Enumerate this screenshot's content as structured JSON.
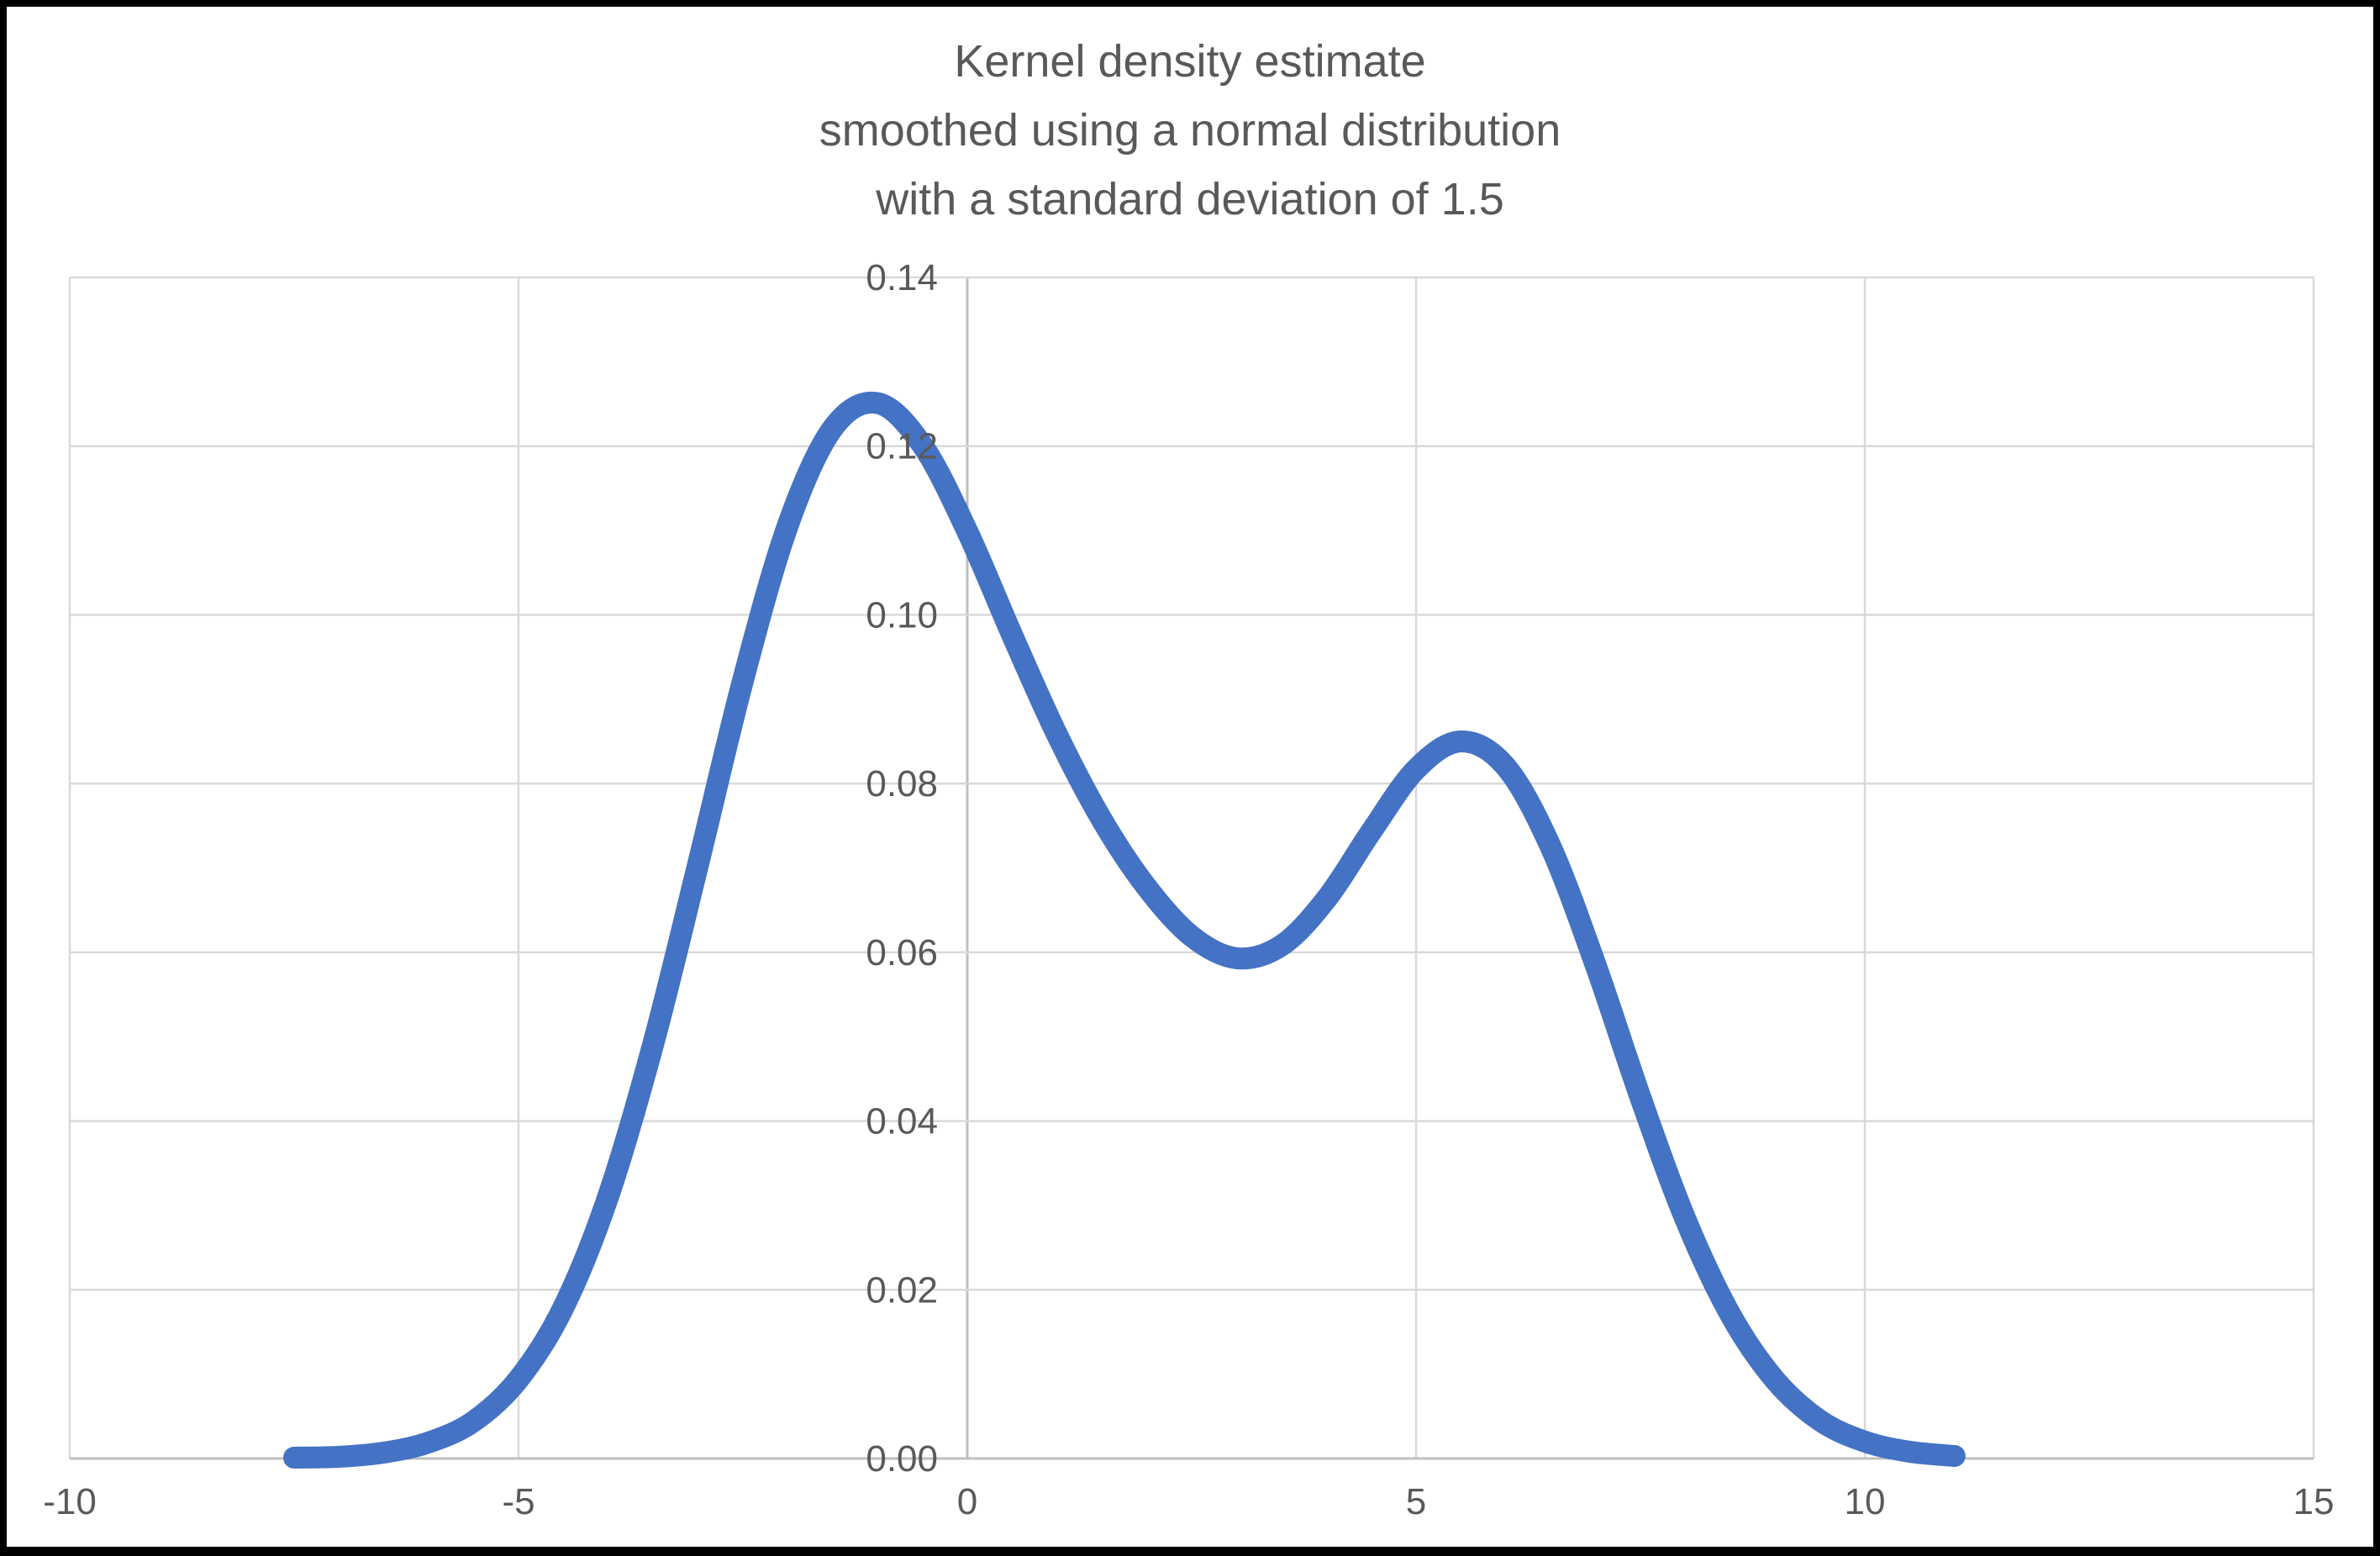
{
  "title": {
    "lines": [
      "Kernel density estimate",
      "smoothed using a normal distribution",
      "with a standard deviation of 1.5"
    ],
    "color": "#595959"
  },
  "chart_data": {
    "type": "line",
    "title": "Kernel density estimate smoothed using a normal distribution with a standard deviation of 1.5",
    "xlabel": "",
    "ylabel": "",
    "xlim": [
      -10,
      15
    ],
    "ylim": [
      0,
      0.14
    ],
    "grid": true,
    "legend": "none",
    "x_ticks": {
      "values": [
        -10,
        -5,
        0,
        5,
        10,
        15
      ],
      "labels": [
        "-10",
        "-5",
        "0",
        "5",
        "10",
        "15"
      ]
    },
    "y_ticks": {
      "values": [
        0,
        0.02,
        0.04,
        0.06,
        0.08,
        0.1,
        0.12,
        0.14
      ],
      "labels": [
        "0.00",
        "0.02",
        "0.04",
        "0.06",
        "0.08",
        "0.10",
        "0.12",
        "0.14"
      ]
    },
    "colors": {
      "line": "#4472C4",
      "gridline": "#D9D9D9",
      "axis_line": "#BFBFBF",
      "tick_label": "#595959",
      "background": "#FFFFFF",
      "frame": "#000000"
    },
    "series": [
      {
        "name": "kernel density estimate",
        "color": "#4472C4",
        "points": [
          [
            -7.5,
            0.0001
          ],
          [
            -7.0,
            0.0002
          ],
          [
            -6.5,
            0.0007
          ],
          [
            -6.0,
            0.0019
          ],
          [
            -5.5,
            0.0044
          ],
          [
            -5.0,
            0.0094
          ],
          [
            -4.5,
            0.0179
          ],
          [
            -4.0,
            0.0311
          ],
          [
            -3.5,
            0.0491
          ],
          [
            -3.0,
            0.0704
          ],
          [
            -2.5,
            0.0922
          ],
          [
            -2.0,
            0.1106
          ],
          [
            -1.5,
            0.1221
          ],
          [
            -1.0,
            0.1251
          ],
          [
            -0.5,
            0.1201
          ],
          [
            0.0,
            0.1099
          ],
          [
            0.5,
            0.0976
          ],
          [
            1.0,
            0.0858
          ],
          [
            1.5,
            0.0757
          ],
          [
            2.0,
            0.0677
          ],
          [
            2.5,
            0.0619
          ],
          [
            3.0,
            0.0593
          ],
          [
            3.5,
            0.0608
          ],
          [
            4.0,
            0.0663
          ],
          [
            4.5,
            0.0743
          ],
          [
            5.0,
            0.0817
          ],
          [
            5.5,
            0.085
          ],
          [
            6.0,
            0.082
          ],
          [
            6.5,
            0.0725
          ],
          [
            7.0,
            0.0585
          ],
          [
            7.5,
            0.0428
          ],
          [
            8.0,
            0.0284
          ],
          [
            8.5,
            0.0171
          ],
          [
            9.0,
            0.0093
          ],
          [
            9.5,
            0.0045
          ],
          [
            10.0,
            0.002
          ],
          [
            10.5,
            0.0008
          ],
          [
            11.0,
            0.0003
          ]
        ]
      }
    ]
  }
}
